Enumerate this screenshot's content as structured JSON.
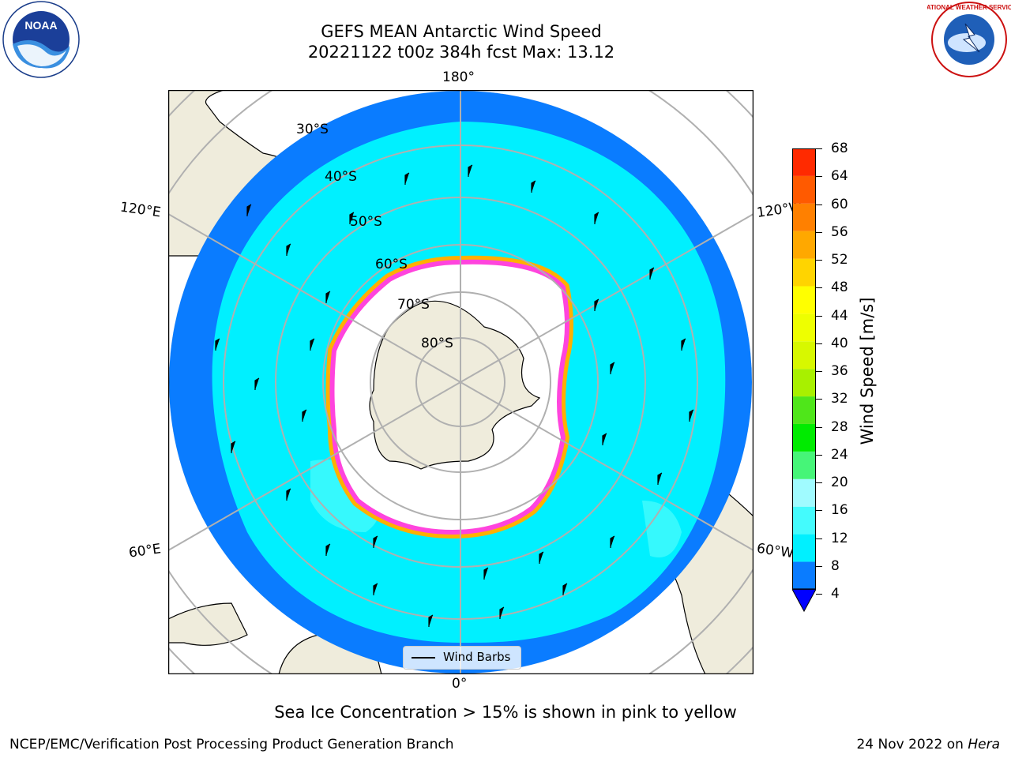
{
  "title": {
    "line1": "GEFS MEAN Antarctic Wind Speed",
    "line2": "20221122 t00z 384h fcst   Max: 13.12"
  },
  "logos": {
    "left": {
      "name": "NOAA",
      "text": "NOAA",
      "ring_text": "NATIONAL OCEANIC AND ATMOSPHERIC ADMINISTRATION · U.S. DEPARTMENT OF COMMERCE"
    },
    "right": {
      "name": "National Weather Service",
      "ring_text": "NATIONAL WEATHER SERVICE"
    }
  },
  "map": {
    "projection": "south polar stereographic",
    "longitude_labels": {
      "top": "180°",
      "bottom": "0°",
      "left_upper": "120°E",
      "right_upper": "120°W",
      "left_lower": "60°E",
      "right_lower": "60°W"
    },
    "latitude_labels": [
      "30°S",
      "40°S",
      "50°S",
      "60°S",
      "70°S",
      "80°S"
    ],
    "colors": {
      "ocean_low": "#0a7cff",
      "ocean_mid": "#00f0ff",
      "ocean_high": "#44fbfd",
      "land": "#efecdc",
      "sea_ice": "#ff44dd",
      "sea_ice_edge": "#ffb000",
      "grid": "#b0b0b0"
    },
    "legend": {
      "label": "Wind Barbs"
    }
  },
  "colorbar": {
    "label": "Wind Speed [m/s]",
    "ticks": [
      "4",
      "8",
      "12",
      "16",
      "20",
      "24",
      "28",
      "32",
      "36",
      "40",
      "44",
      "48",
      "52",
      "56",
      "60",
      "64",
      "68"
    ],
    "colors": [
      "#0a7cff",
      "#00f0ff",
      "#44fbfd",
      "#a0fbff",
      "#46f578",
      "#00eb00",
      "#4fe61a",
      "#a8f000",
      "#d7f800",
      "#eeff00",
      "#ffff00",
      "#ffd400",
      "#ffa800",
      "#ff8000",
      "#ff5a00",
      "#ff2a00",
      "#ff0000"
    ],
    "under_color": "#0000ff"
  },
  "caption": "Sea Ice Concentration > 15% is shown in pink to yellow",
  "footer": {
    "left": "NCEP/EMC/Verification Post Processing Product Generation Branch",
    "right_date": "24 Nov 2022 on ",
    "right_machine": "Hera"
  }
}
